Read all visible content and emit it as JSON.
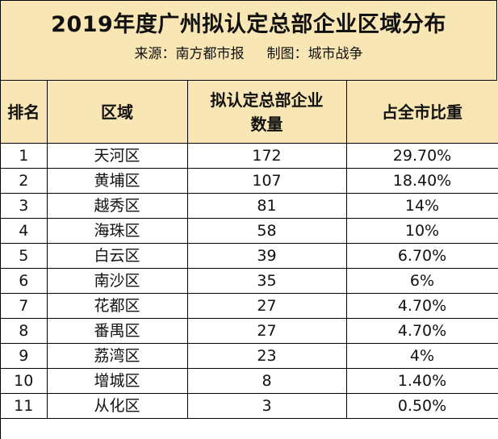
{
  "title": "2019年度广州拟认定总部企业区域分布",
  "source": "来源：南方都市报",
  "credit": "制图：城市战争",
  "headers": {
    "rank": "排名",
    "district": "区域",
    "count_line1": "拟认定总部企业",
    "count_line2": "数量",
    "share": "占全市比重"
  },
  "chart_data": {
    "type": "table",
    "columns": [
      "排名",
      "区域",
      "拟认定总部企业数量",
      "占全市比重"
    ],
    "rows": [
      [
        "1",
        "天河区",
        "172",
        "29.70%"
      ],
      [
        "2",
        "黄埔区",
        "107",
        "18.40%"
      ],
      [
        "3",
        "越秀区",
        "81",
        "14%"
      ],
      [
        "4",
        "海珠区",
        "58",
        "10%"
      ],
      [
        "5",
        "白云区",
        "39",
        "6.70%"
      ],
      [
        "6",
        "南沙区",
        "35",
        "6%"
      ],
      [
        "7",
        "花都区",
        "27",
        "4.70%"
      ],
      [
        "8",
        "番禺区",
        "27",
        "4.70%"
      ],
      [
        "9",
        "荔湾区",
        "23",
        "4%"
      ],
      [
        "10",
        "增城区",
        "8",
        "1.40%"
      ],
      [
        "11",
        "从化区",
        "3",
        "0.50%"
      ]
    ]
  },
  "colors": {
    "header_background": "#f8e6b4",
    "border": "#000000",
    "text": "#111111"
  }
}
